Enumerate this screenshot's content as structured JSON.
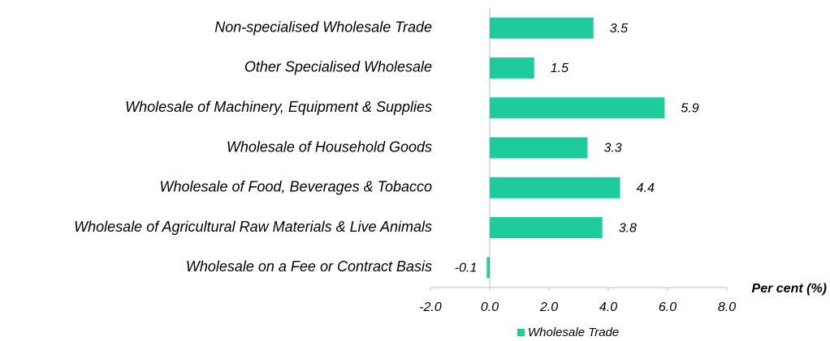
{
  "chart_data": {
    "type": "bar",
    "orientation": "horizontal",
    "categories": [
      "Non-specialised Wholesale Trade",
      "Other Specialised Wholesale",
      "Wholesale of Machinery, Equipment & Supplies",
      "Wholesale of Household Goods",
      "Wholesale of Food, Beverages & Tobacco",
      "Wholesale of Agricultural Raw Materials & Live Animals",
      "Wholesale on a Fee or Contract Basis"
    ],
    "series": [
      {
        "name": "Wholesale Trade",
        "color": "#1ecb9a",
        "values": [
          3.5,
          1.5,
          5.9,
          3.3,
          4.4,
          3.8,
          -0.1
        ]
      }
    ],
    "xlim": [
      -2,
      8
    ],
    "xticks": [
      {
        "value": -2,
        "label": "-2.0"
      },
      {
        "value": 0,
        "label": "0.0"
      },
      {
        "value": 2,
        "label": "2.0"
      },
      {
        "value": 4,
        "label": "4.0"
      },
      {
        "value": 6,
        "label": "6.0"
      },
      {
        "value": 8,
        "label": "8.0"
      }
    ],
    "xlabel": "Per cent (%)",
    "legend": "bottom"
  }
}
